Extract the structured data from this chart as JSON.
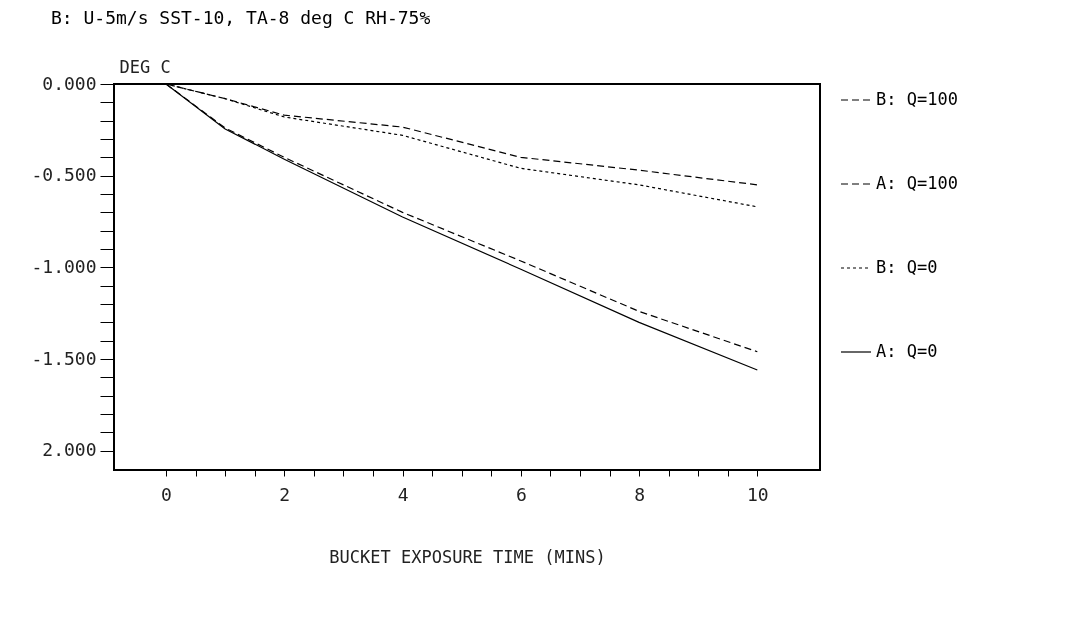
{
  "chart_data": {
    "type": "line",
    "title": "B: U-5m/s SST-10, TA-8 deg C   RH-75%",
    "xlabel": "BUCKET EXPOSURE TIME (MINS)",
    "ylabel": "DEG C",
    "x": [
      0,
      1,
      2,
      4,
      6,
      8,
      10
    ],
    "series": [
      {
        "name": "B: Q=100",
        "color": "#000000",
        "line_style": "dashed",
        "values": [
          0,
          -0.08,
          -0.17,
          -0.235,
          -0.4,
          -0.47,
          -0.55
        ]
      },
      {
        "name": "A: Q=100",
        "color": "#000000",
        "line_style": "dashed",
        "values": [
          0,
          -0.24,
          -0.4,
          -0.7,
          -0.965,
          -1.24,
          -1.46
        ]
      },
      {
        "name": "B: Q=0",
        "color": "#000000",
        "line_style": "dotted",
        "values": [
          0,
          -0.08,
          -0.18,
          -0.28,
          -0.46,
          -0.55,
          -0.67
        ]
      },
      {
        "name": "A: Q=0",
        "color": "#000000",
        "line_style": "solid",
        "values": [
          0,
          -0.245,
          -0.41,
          -0.725,
          -1.01,
          -1.3,
          -1.56
        ]
      }
    ],
    "xlim": [
      -0.88,
      11.06
    ],
    "xticks": [
      0,
      {
        "value": 0.5,
        "label": null
      },
      {
        "value": 1,
        "label": null
      },
      {
        "value": 1.5,
        "label": null
      },
      2,
      {
        "value": 2.5,
        "label": null
      },
      {
        "value": 3,
        "label": null
      },
      {
        "value": 3.5,
        "label": null
      },
      4,
      {
        "value": 4.5,
        "label": null
      },
      {
        "value": 5,
        "label": null
      },
      {
        "value": 5.5,
        "label": null
      },
      6,
      {
        "value": 6.5,
        "label": null
      },
      {
        "value": 7,
        "label": null
      },
      {
        "value": 7.5,
        "label": null
      },
      8,
      {
        "value": 8.5,
        "label": null
      },
      {
        "value": 9,
        "label": null
      },
      {
        "value": 9.5,
        "label": null
      },
      10
    ],
    "ylim": [
      -2.105,
      0
    ],
    "yticks": [
      {
        "value": 0,
        "label": "0.000"
      },
      {
        "value": -0.1,
        "label": null
      },
      {
        "value": -0.2,
        "label": null
      },
      {
        "value": -0.3,
        "label": null
      },
      {
        "value": -0.4,
        "label": null
      },
      {
        "value": -0.5,
        "label": "-0.500"
      },
      {
        "value": -0.6,
        "label": null
      },
      {
        "value": -0.7,
        "label": null
      },
      {
        "value": -0.8,
        "label": null
      },
      {
        "value": -0.9,
        "label": null
      },
      {
        "value": -1,
        "label": "-1.000"
      },
      {
        "value": -1.1,
        "label": null
      },
      {
        "value": -1.2,
        "label": null
      },
      {
        "value": -1.3,
        "label": null
      },
      {
        "value": -1.4,
        "label": null
      },
      {
        "value": -1.5,
        "label": "-1.500"
      },
      {
        "value": -1.6,
        "label": null
      },
      {
        "value": -1.7,
        "label": null
      },
      {
        "value": -1.8,
        "label": null
      },
      {
        "value": -1.9,
        "label": null
      },
      {
        "value": -2,
        "label": "2.000"
      }
    ],
    "legend": "right",
    "grid": false
  }
}
